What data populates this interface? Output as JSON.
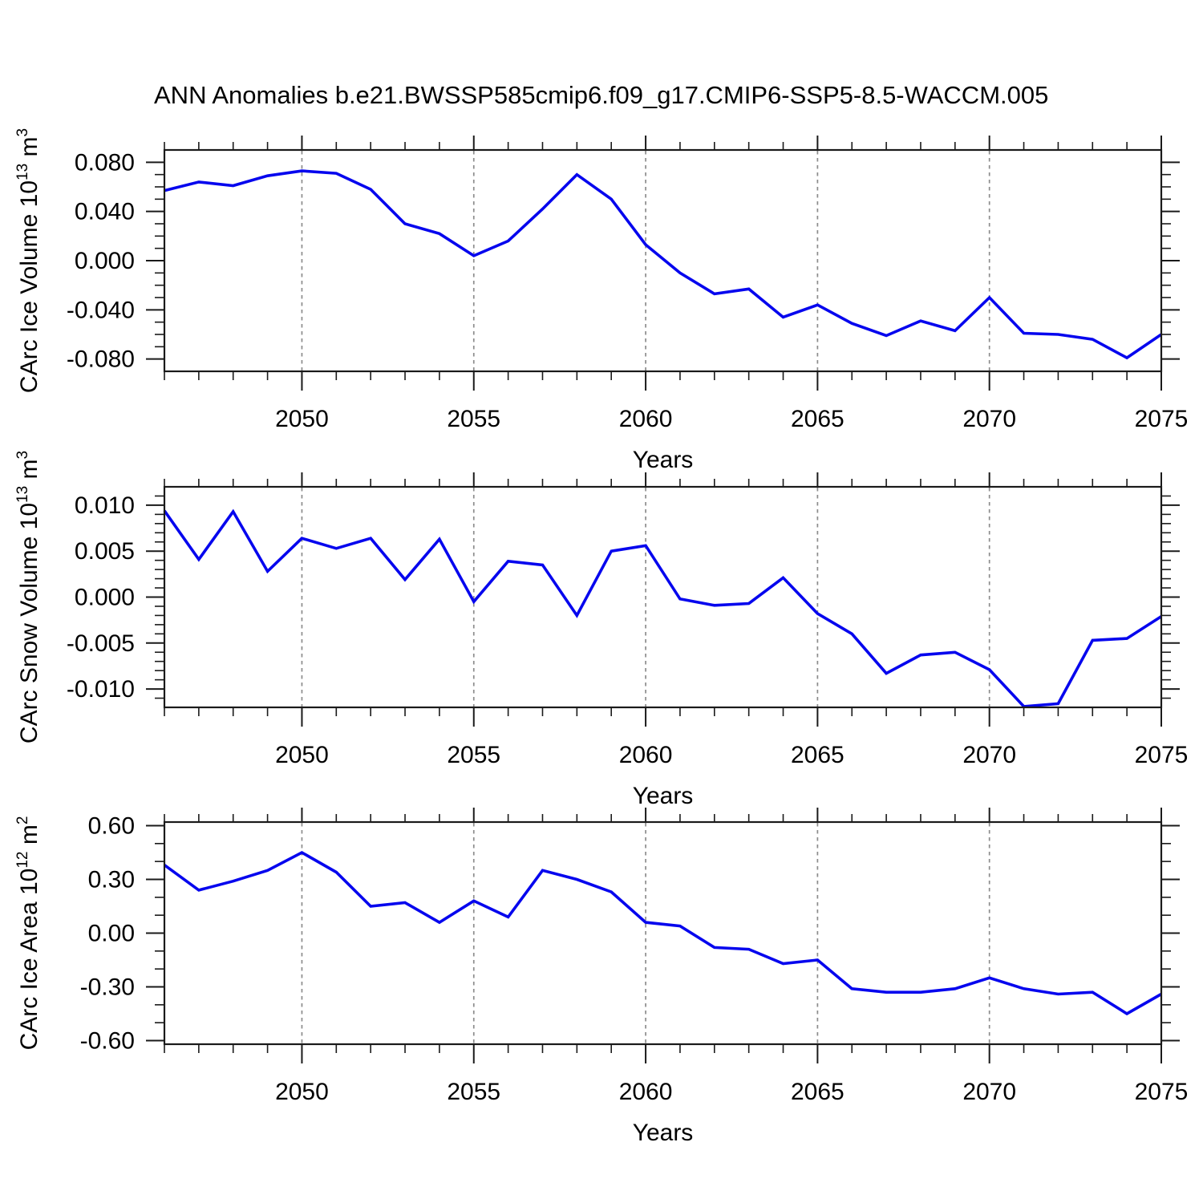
{
  "title": "ANN Anomalies b.e21.BWSSP585cmip6.f09_g17.CMIP6-SSP5-8.5-WACCM.005",
  "style": {
    "line_color": "#0606ee",
    "axis_color": "#1a1a1a",
    "grid_color": "#8c8c8c",
    "text_color": "#000000",
    "background": "#ffffff"
  },
  "chart_data": [
    {
      "type": "line",
      "name": "carc-ice-volume",
      "ylabel": "CArc Ice Volume 10^13 m^3",
      "xlabel": "Years",
      "x": [
        2046,
        2047,
        2048,
        2049,
        2050,
        2051,
        2052,
        2053,
        2054,
        2055,
        2056,
        2057,
        2058,
        2059,
        2060,
        2061,
        2062,
        2063,
        2064,
        2065,
        2066,
        2067,
        2068,
        2069,
        2070,
        2071,
        2072,
        2073,
        2074,
        2075
      ],
      "values": [
        0.057,
        0.064,
        0.061,
        0.069,
        0.073,
        0.071,
        0.058,
        0.03,
        0.022,
        0.004,
        0.016,
        0.042,
        0.07,
        0.05,
        0.013,
        -0.01,
        -0.027,
        -0.023,
        -0.046,
        -0.036,
        -0.051,
        -0.061,
        -0.049,
        -0.057,
        -0.03,
        -0.059,
        -0.06,
        -0.064,
        -0.079,
        -0.06
      ],
      "xlim": [
        2046,
        2075
      ],
      "ylim": [
        -0.09,
        0.09
      ],
      "xticks_major": [
        2050,
        2055,
        2060,
        2065,
        2070,
        2075
      ],
      "xtick_labels": [
        "2050",
        "2055",
        "2060",
        "2065",
        "2070",
        "2075"
      ],
      "xtick_minor_step": 1,
      "grid_x": [
        2050,
        2055,
        2060,
        2065,
        2070
      ],
      "yticks_major": [
        0.08,
        0.04,
        0,
        -0.04,
        -0.08
      ],
      "ytick_labels": [
        "0.080",
        "0.040",
        "0.000",
        "-0.040",
        "-0.080"
      ],
      "ytick_minor_step": 0.01,
      "grid": "vertical-dashed-only",
      "legend": null
    },
    {
      "type": "line",
      "name": "carc-snow-volume",
      "ylabel": "CArc Snow Volume 10^13 m^3",
      "xlabel": "Years",
      "x": [
        2046,
        2047,
        2048,
        2049,
        2050,
        2051,
        2052,
        2053,
        2054,
        2055,
        2056,
        2057,
        2058,
        2059,
        2060,
        2061,
        2062,
        2063,
        2064,
        2065,
        2066,
        2067,
        2068,
        2069,
        2070,
        2071,
        2072,
        2073,
        2074,
        2075
      ],
      "values": [
        0.0094,
        0.0041,
        0.0093,
        0.0028,
        0.0064,
        0.0053,
        0.0064,
        0.0019,
        0.0063,
        -0.0005,
        0.0039,
        0.0035,
        -0.002,
        0.005,
        0.0056,
        -0.0002,
        -0.0009,
        -0.0007,
        0.0021,
        -0.0018,
        -0.004,
        -0.0083,
        -0.0063,
        -0.006,
        -0.0079,
        -0.0119,
        -0.0116,
        -0.0047,
        -0.0045,
        -0.0021
      ],
      "xlim": [
        2046,
        2075
      ],
      "ylim": [
        -0.012,
        0.012
      ],
      "xticks_major": [
        2050,
        2055,
        2060,
        2065,
        2070,
        2075
      ],
      "xtick_labels": [
        "2050",
        "2055",
        "2060",
        "2065",
        "2070",
        "2075"
      ],
      "xtick_minor_step": 1,
      "grid_x": [
        2050,
        2055,
        2060,
        2065,
        2070
      ],
      "yticks_major": [
        0.01,
        0.005,
        0,
        -0.005,
        -0.01
      ],
      "ytick_labels": [
        "0.010",
        "0.005",
        "0.000",
        "-0.005",
        "-0.010"
      ],
      "ytick_minor_step": 0.001,
      "grid": "vertical-dashed-only",
      "legend": null
    },
    {
      "type": "line",
      "name": "carc-ice-area",
      "ylabel": "CArc Ice Area 10^12 m^2",
      "xlabel": "Years",
      "x": [
        2046,
        2047,
        2048,
        2049,
        2050,
        2051,
        2052,
        2053,
        2054,
        2055,
        2056,
        2057,
        2058,
        2059,
        2060,
        2061,
        2062,
        2063,
        2064,
        2065,
        2066,
        2067,
        2068,
        2069,
        2070,
        2071,
        2072,
        2073,
        2074,
        2075
      ],
      "values": [
        0.38,
        0.24,
        0.29,
        0.35,
        0.45,
        0.34,
        0.15,
        0.17,
        0.06,
        0.18,
        0.09,
        0.35,
        0.3,
        0.23,
        0.06,
        0.04,
        -0.08,
        -0.09,
        -0.17,
        -0.15,
        -0.31,
        -0.33,
        -0.33,
        -0.31,
        -0.25,
        -0.31,
        -0.34,
        -0.33,
        -0.45,
        -0.34
      ],
      "xlim": [
        2046,
        2075
      ],
      "ylim": [
        -0.62,
        0.62
      ],
      "xticks_major": [
        2050,
        2055,
        2060,
        2065,
        2070,
        2075
      ],
      "xtick_labels": [
        "2050",
        "2055",
        "2060",
        "2065",
        "2070",
        "2075"
      ],
      "xtick_minor_step": 1,
      "grid_x": [
        2050,
        2055,
        2060,
        2065,
        2070
      ],
      "yticks_major": [
        0.6,
        0.3,
        0,
        -0.3,
        -0.6
      ],
      "ytick_labels": [
        "0.60",
        "0.30",
        "0.00",
        "-0.30",
        "-0.60"
      ],
      "ytick_minor_step": 0.1,
      "grid": "vertical-dashed-only",
      "legend": null
    }
  ]
}
